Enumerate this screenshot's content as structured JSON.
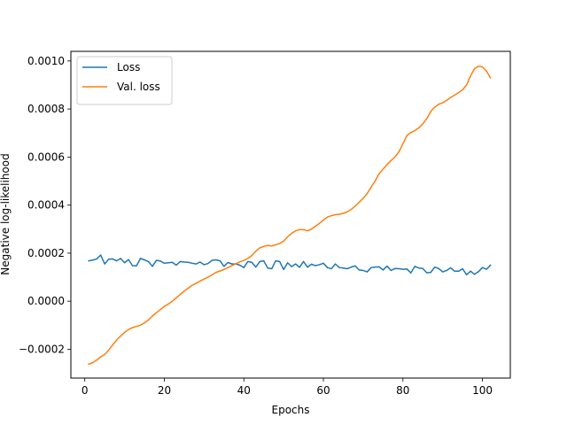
{
  "chart_data": {
    "type": "line",
    "xlabel": "Epochs",
    "ylabel": "Negative log-likelihood",
    "xlim": [
      -3.5,
      107
    ],
    "ylim": [
      -0.00032,
      0.00104
    ],
    "xticks": [
      0,
      20,
      40,
      60,
      80,
      100
    ],
    "xtick_labels": [
      "0",
      "20",
      "40",
      "60",
      "80",
      "100"
    ],
    "yticks": [
      -0.0002,
      0.0,
      0.0002,
      0.0004,
      0.0006,
      0.0008,
      0.001
    ],
    "ytick_labels": [
      "−0.0002",
      "0.0000",
      "0.0002",
      "0.0004",
      "0.0006",
      "0.0008",
      "0.0010"
    ],
    "grid": false,
    "legend_position": "top-left",
    "series": [
      {
        "name": "Loss",
        "color": "#1f77b4",
        "x_start": 1,
        "values": [
          0.000168,
          0.000171,
          0.000176,
          0.000192,
          0.000155,
          0.000175,
          0.000176,
          0.000168,
          0.000178,
          0.00016,
          0.000173,
          0.000148,
          0.000147,
          0.000178,
          0.000172,
          0.000165,
          0.000145,
          0.00017,
          0.000167,
          0.000158,
          0.00016,
          0.000162,
          0.00015,
          0.000165,
          0.000163,
          0.000162,
          0.000158,
          0.000155,
          0.000163,
          0.000152,
          0.000157,
          0.00017,
          0.000172,
          0.000168,
          0.000145,
          0.000161,
          0.000155,
          0.000155,
          0.00015,
          0.00014,
          0.000165,
          0.000162,
          0.000142,
          0.000165,
          0.000168,
          0.000138,
          0.000135,
          0.000168,
          0.000165,
          0.000132,
          0.00016,
          0.000144,
          0.000155,
          0.000141,
          0.000165,
          0.000142,
          0.000154,
          0.000148,
          0.000152,
          0.000158,
          0.00014,
          0.000135,
          0.000155,
          0.00014,
          0.000138,
          0.000135,
          0.000142,
          0.000147,
          0.00013,
          0.000128,
          0.000122,
          0.00014,
          0.000142,
          0.000143,
          0.00013,
          0.000146,
          0.000128,
          0.000136,
          0.000135,
          0.000133,
          0.000134,
          0.000118,
          0.000145,
          0.000138,
          0.000136,
          0.000118,
          0.00012,
          0.000142,
          0.000136,
          0.000122,
          0.000128,
          0.000139,
          0.000125,
          0.000125,
          0.000135,
          0.00011,
          0.000125,
          0.000112,
          0.000123,
          0.00014,
          0.000133,
          0.00015
        ]
      },
      {
        "name": "Val. loss",
        "color": "#ff7f0e",
        "x_start": 1,
        "values": [
          -0.000262,
          -0.000256,
          -0.000245,
          -0.000232,
          -0.000222,
          -0.000204,
          -0.000182,
          -0.000162,
          -0.000145,
          -0.00013,
          -0.000118,
          -0.00011,
          -0.000105,
          -0.0001,
          -9e-05,
          -7.8e-05,
          -6.2e-05,
          -4.8e-05,
          -3.5e-05,
          -2.2e-05,
          -1.2e-05,
          0.0,
          1.4e-05,
          2.8e-05,
          4.2e-05,
          5.4e-05,
          6.6e-05,
          7.5e-05,
          8.4e-05,
          9.2e-05,
          0.0001,
          0.00011,
          0.00012,
          0.000126,
          0.000132,
          0.00014,
          0.000148,
          0.000156,
          0.000164,
          0.00017,
          0.000178,
          0.00019,
          0.000208,
          0.000222,
          0.000228,
          0.000232,
          0.00023,
          0.000235,
          0.00024,
          0.00025,
          0.000268,
          0.000282,
          0.000293,
          0.000298,
          0.000298,
          0.000293,
          0.0003,
          0.000312,
          0.000324,
          0.000338,
          0.00035,
          0.000356,
          0.00036,
          0.000362,
          0.000366,
          0.000372,
          0.000382,
          0.000396,
          0.000412,
          0.000428,
          0.000448,
          0.000475,
          0.0005,
          0.00053,
          0.00055,
          0.000568,
          0.000585,
          0.0006,
          0.000622,
          0.000655,
          0.00069,
          0.000702,
          0.00071,
          0.000722,
          0.000738,
          0.00076,
          0.00079,
          0.000808,
          0.00082,
          0.000826,
          0.000836,
          0.000848,
          0.000858,
          0.000868,
          0.00088,
          0.0009,
          0.000938,
          0.000968,
          0.000978,
          0.000975,
          0.000958,
          0.00093
        ]
      }
    ]
  }
}
